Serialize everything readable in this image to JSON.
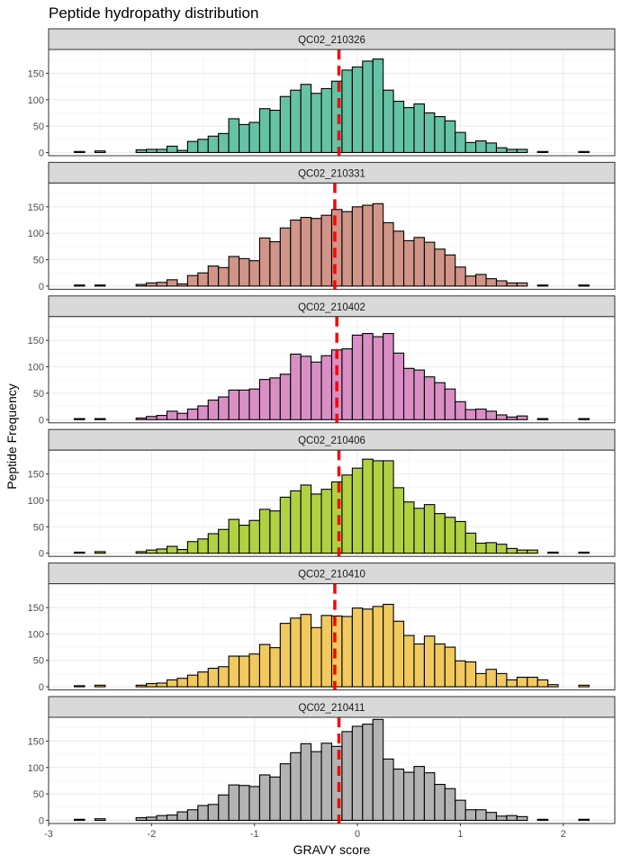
{
  "chart_data": {
    "type": "bar",
    "title": "Peptide hydropathy distribution",
    "xlabel": "GRAVY score",
    "ylabel": "Peptide Frequency",
    "xlim": [
      -3,
      2.5
    ],
    "ylim": [
      0,
      195
    ],
    "x_ticks": [
      -3,
      -2,
      -1,
      0,
      1,
      2
    ],
    "y_ticks": [
      0,
      50,
      100,
      150
    ],
    "bin_width": 0.1,
    "bin_starts": [
      -2.75,
      -2.65,
      -2.55,
      -2.45,
      -2.35,
      -2.25,
      -2.15,
      -2.05,
      -1.95,
      -1.85,
      -1.75,
      -1.65,
      -1.55,
      -1.45,
      -1.35,
      -1.25,
      -1.15,
      -1.05,
      -0.95,
      -0.85,
      -0.75,
      -0.65,
      -0.55,
      -0.45,
      -0.35,
      -0.25,
      -0.15,
      -0.05,
      0.05,
      0.15,
      0.25,
      0.35,
      0.45,
      0.55,
      0.65,
      0.75,
      0.85,
      0.95,
      1.05,
      1.15,
      1.25,
      1.35,
      1.45,
      1.55,
      1.65,
      1.75,
      1.85,
      1.95,
      2.05,
      2.15
    ],
    "grid": true,
    "legend": "none",
    "mean_line_color": "#ff0000",
    "panels": [
      {
        "name": "QC02_210326",
        "color": "#66c2a5",
        "mean": -0.18,
        "values": [
          2,
          0,
          3,
          0,
          0,
          0,
          5,
          6,
          6,
          12,
          4,
          21,
          25,
          31,
          36,
          64,
          53,
          57,
          83,
          80,
          106,
          118,
          129,
          112,
          121,
          135,
          156,
          162,
          173,
          177,
          118,
          97,
          85,
          92,
          75,
          68,
          60,
          38,
          19,
          22,
          18,
          9,
          6,
          6,
          0,
          2,
          0,
          0,
          0,
          2
        ]
      },
      {
        "name": "QC02_210331",
        "color": "#d09488",
        "mean": -0.22,
        "values": [
          2,
          0,
          2,
          0,
          0,
          0,
          3,
          6,
          7,
          12,
          4,
          20,
          25,
          38,
          35,
          56,
          52,
          48,
          91,
          84,
          110,
          125,
          130,
          128,
          134,
          145,
          141,
          150,
          153,
          156,
          120,
          104,
          86,
          92,
          83,
          70,
          59,
          36,
          19,
          22,
          14,
          10,
          6,
          6,
          0,
          2,
          0,
          0,
          0,
          2
        ]
      },
      {
        "name": "QC02_210402",
        "color": "#d98fc4",
        "mean": -0.2,
        "values": [
          2,
          0,
          2,
          0,
          0,
          0,
          3,
          6,
          8,
          16,
          12,
          20,
          26,
          37,
          43,
          56,
          56,
          58,
          76,
          79,
          86,
          124,
          120,
          109,
          121,
          132,
          134,
          160,
          163,
          157,
          163,
          126,
          97,
          94,
          81,
          70,
          58,
          34,
          19,
          20,
          16,
          9,
          5,
          7,
          0,
          2,
          0,
          0,
          0,
          2
        ]
      },
      {
        "name": "QC02_210406",
        "color": "#b1d143",
        "mean": -0.18,
        "values": [
          2,
          0,
          3,
          0,
          0,
          0,
          3,
          6,
          8,
          13,
          7,
          22,
          27,
          37,
          45,
          64,
          53,
          62,
          83,
          80,
          106,
          118,
          129,
          112,
          121,
          135,
          148,
          161,
          178,
          175,
          175,
          124,
          97,
          85,
          92,
          75,
          68,
          60,
          38,
          19,
          20,
          17,
          9,
          6,
          6,
          0,
          2,
          0,
          0,
          2
        ]
      },
      {
        "name": "QC02_210410",
        "color": "#f1c95e",
        "mean": -0.22,
        "values": [
          2,
          0,
          3,
          0,
          0,
          0,
          3,
          6,
          7,
          13,
          16,
          22,
          28,
          35,
          38,
          58,
          58,
          62,
          80,
          74,
          120,
          130,
          137,
          112,
          135,
          134,
          133,
          149,
          147,
          152,
          156,
          124,
          97,
          81,
          96,
          81,
          75,
          49,
          47,
          25,
          33,
          25,
          13,
          18,
          18,
          13,
          4,
          0,
          0,
          3
        ]
      },
      {
        "name": "QC02_210411",
        "color": "#b3b3b3",
        "mean": -0.18,
        "values": [
          2,
          0,
          3,
          0,
          0,
          0,
          5,
          6,
          9,
          10,
          16,
          20,
          28,
          30,
          48,
          67,
          66,
          64,
          86,
          82,
          107,
          128,
          145,
          130,
          146,
          140,
          168,
          178,
          182,
          191,
          116,
          97,
          91,
          102,
          90,
          68,
          60,
          38,
          20,
          20,
          15,
          8,
          9,
          7,
          0,
          2,
          0,
          0,
          0,
          2
        ]
      }
    ]
  }
}
